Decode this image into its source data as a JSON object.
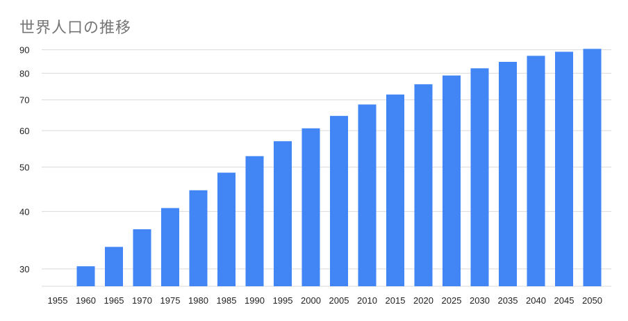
{
  "chart_data": {
    "type": "bar",
    "title": "世界人口の推移",
    "xlabel": "",
    "ylabel": "",
    "y_scale": "log",
    "ylim": [
      27.5,
      90.5
    ],
    "yticks": [
      30,
      40,
      50,
      60,
      70,
      80,
      90
    ],
    "grid": true,
    "legend": "none",
    "bar_color": "#4285F4",
    "categories": [
      "1955",
      "1960",
      "1965",
      "1970",
      "1975",
      "1980",
      "1985",
      "1990",
      "1995",
      "2000",
      "2005",
      "2010",
      "2015",
      "2020",
      "2025",
      "2030",
      "2035",
      "2040",
      "2045",
      "2050"
    ],
    "values": [
      27.5,
      30.4,
      33.5,
      36.6,
      40.7,
      44.5,
      48.6,
      52.8,
      56.9,
      60.7,
      64.6,
      68.4,
      71.9,
      75.7,
      79.1,
      82.0,
      84.7,
      87.3,
      89.1,
      90.4
    ]
  }
}
